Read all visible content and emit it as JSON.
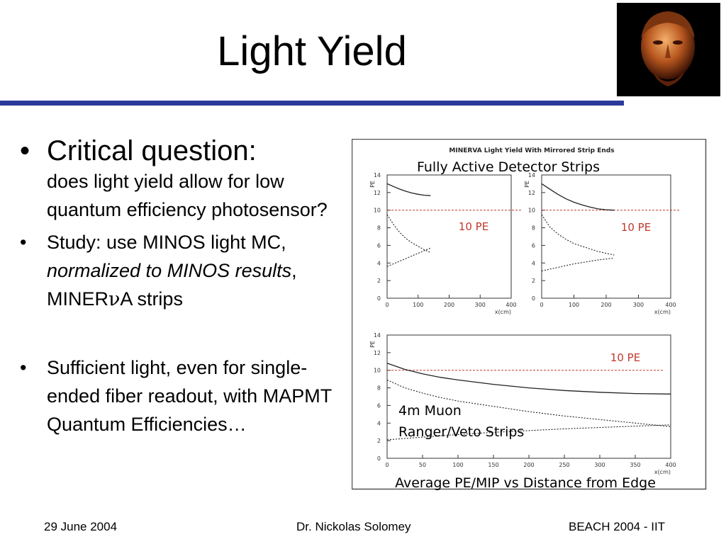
{
  "slide": {
    "title": "Light Yield",
    "bullets": {
      "b1_main": "Critical question:",
      "b1_sub": "does light yield allow for low quantum efficiency photosensor?",
      "b2_pre": "Study: use MINOS light MC, ",
      "b2_italic": "normalized to MINOS results",
      "b2_mid": ", MINER",
      "b2_nu": "ν",
      "b2_post": "A strips",
      "b3": "Sufficient light, even for single-ended fiber readout, with MAPMT Quantum Efficiencies…"
    },
    "bullet_char": "•",
    "portrait_icon": "bust-portrait-icon",
    "accent_color": "#2b3a9a"
  },
  "footer": {
    "date": "29 June 2004",
    "author": "Dr. Nickolas Solomey",
    "event": "BEACH 2004 - IIT"
  },
  "chart_data": {
    "type": "line",
    "title": "MINERVA Light Yield With Mirrored Strip Ends",
    "annotations": {
      "top": "Fully Active Detector Strips",
      "bottom_label_1": "4m Muon",
      "bottom_label_2": "Ranger/Veto Strips",
      "caption": "Average PE/MIP vs Distance from Edge",
      "threshold_label": "10 PE"
    },
    "threshold": 10,
    "threshold_color": "#c0392b",
    "panels": [
      {
        "id": "top-left",
        "ylabel": "PE",
        "xlabel": "x(cm)",
        "xlim": [
          0,
          400
        ],
        "ylim": [
          0,
          14
        ],
        "xticks": [
          "0",
          "100",
          "200",
          "300",
          "400"
        ],
        "yticks": [
          "0",
          "2",
          "4",
          "6",
          "8",
          "10",
          "12",
          "14"
        ],
        "series": [
          {
            "style": "solid",
            "x": [
              0,
              20,
              40,
              60,
              80,
              100,
              120,
              140
            ],
            "y": [
              13.0,
              12.7,
              12.4,
              12.15,
              11.95,
              11.8,
              11.7,
              11.65
            ]
          },
          {
            "style": "dotted",
            "x": [
              0,
              20,
              40,
              60,
              80,
              100,
              120,
              140
            ],
            "y": [
              9.5,
              8.4,
              7.5,
              6.8,
              6.3,
              5.9,
              5.5,
              5.2
            ]
          },
          {
            "style": "dotted",
            "x": [
              0,
              20,
              40,
              60,
              80,
              100,
              120,
              140
            ],
            "y": [
              3.6,
              3.9,
              4.2,
              4.5,
              4.8,
              5.1,
              5.4,
              5.7
            ]
          }
        ]
      },
      {
        "id": "top-right",
        "ylabel": "PE",
        "xlabel": "x(cm)",
        "xlim": [
          0,
          400
        ],
        "ylim": [
          0,
          14
        ],
        "xticks": [
          "0",
          "100",
          "200",
          "300",
          "400"
        ],
        "yticks": [
          "0",
          "2",
          "4",
          "6",
          "8",
          "10",
          "12",
          "14"
        ],
        "series": [
          {
            "style": "solid",
            "x": [
              0,
              25,
              50,
              75,
              100,
              125,
              150,
              175,
              200,
              225
            ],
            "y": [
              13.0,
              12.4,
              11.8,
              11.3,
              10.9,
              10.6,
              10.35,
              10.15,
              10.05,
              10.0
            ]
          },
          {
            "style": "dotted",
            "x": [
              0,
              25,
              50,
              75,
              100,
              125,
              150,
              175,
              200,
              225
            ],
            "y": [
              9.5,
              8.1,
              7.3,
              6.7,
              6.2,
              5.9,
              5.6,
              5.3,
              5.1,
              4.9
            ]
          },
          {
            "style": "dotted",
            "x": [
              0,
              25,
              50,
              75,
              100,
              125,
              150,
              175,
              200,
              225
            ],
            "y": [
              3.1,
              3.3,
              3.5,
              3.7,
              3.9,
              4.05,
              4.2,
              4.35,
              4.45,
              4.55
            ]
          }
        ]
      },
      {
        "id": "bottom",
        "ylabel": "PE",
        "xlabel": "x(cm)",
        "xlim": [
          0,
          400
        ],
        "ylim": [
          0,
          14
        ],
        "xticks": [
          "0",
          "50",
          "100",
          "150",
          "200",
          "250",
          "300",
          "350",
          "400"
        ],
        "yticks": [
          "0",
          "2",
          "4",
          "6",
          "8",
          "10",
          "12",
          "14"
        ],
        "series": [
          {
            "style": "solid",
            "x": [
              0,
              25,
              50,
              75,
              100,
              150,
              200,
              250,
              300,
              350,
              400
            ],
            "y": [
              10.8,
              10.1,
              9.6,
              9.2,
              8.9,
              8.4,
              8.0,
              7.7,
              7.5,
              7.35,
              7.3
            ]
          },
          {
            "style": "dotted",
            "x": [
              0,
              25,
              50,
              75,
              100,
              150,
              200,
              250,
              300,
              350,
              400
            ],
            "y": [
              8.9,
              8.0,
              7.4,
              6.9,
              6.5,
              5.9,
              5.3,
              4.8,
              4.4,
              4.0,
              3.6
            ]
          },
          {
            "style": "dotted",
            "x": [
              0,
              25,
              50,
              75,
              100,
              150,
              200,
              250,
              300,
              350,
              400
            ],
            "y": [
              2.1,
              2.25,
              2.4,
              2.55,
              2.7,
              2.95,
              3.15,
              3.35,
              3.5,
              3.65,
              3.8
            ]
          }
        ]
      }
    ]
  }
}
